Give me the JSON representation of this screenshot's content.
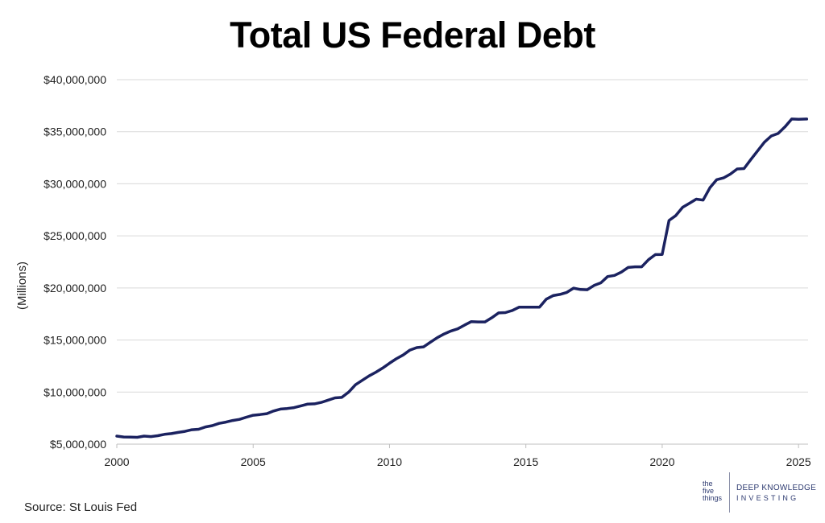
{
  "title": "Total US Federal Debt",
  "source": "Source: St Louis Fed",
  "logo": {
    "five_things": [
      "the",
      "five",
      "things"
    ],
    "line1": "DEEP KNOWLEDGE",
    "line2": "INVESTING",
    "color": "#2d3a70"
  },
  "chart_data": {
    "type": "line",
    "title": "Total US Federal Debt",
    "ylabel": "(Millions)",
    "xlabel": "",
    "xlim": [
      2000,
      2025.35
    ],
    "ylim": [
      5000000,
      40000000
    ],
    "xticks": [
      2000,
      2005,
      2010,
      2015,
      2020,
      2025
    ],
    "yticks": [
      {
        "value": 5000000,
        "label": "$5,000,000"
      },
      {
        "value": 10000000,
        "label": "$10,000,000"
      },
      {
        "value": 15000000,
        "label": "$15,000,000"
      },
      {
        "value": 20000000,
        "label": "$20,000,000"
      },
      {
        "value": 25000000,
        "label": "$25,000,000"
      },
      {
        "value": 30000000,
        "label": "$30,000,000"
      },
      {
        "value": 35000000,
        "label": "$35,000,000"
      },
      {
        "value": 40000000,
        "label": "$40,000,000"
      }
    ],
    "grid": true,
    "line_color": "#1b2260",
    "series": [
      {
        "x": [
          2000,
          2000.25,
          2000.5,
          2000.75,
          2001,
          2001.25,
          2001.5,
          2001.75,
          2002,
          2002.25,
          2002.5,
          2002.75,
          2003,
          2003.25,
          2003.5,
          2003.75,
          2004,
          2004.25,
          2004.5,
          2004.75,
          2005,
          2005.25,
          2005.5,
          2005.75,
          2006,
          2006.25,
          2006.5,
          2006.75,
          2007,
          2007.25,
          2007.5,
          2007.75,
          2008,
          2008.25,
          2008.5,
          2008.75,
          2009,
          2009.25,
          2009.5,
          2009.75,
          2010,
          2010.25,
          2010.5,
          2010.75,
          2011,
          2011.25,
          2011.5,
          2011.75,
          2012,
          2012.25,
          2012.5,
          2012.75,
          2013,
          2013.25,
          2013.5,
          2013.75,
          2014,
          2014.25,
          2014.5,
          2014.75,
          2015,
          2015.25,
          2015.5,
          2015.75,
          2016,
          2016.25,
          2016.5,
          2016.75,
          2017,
          2017.25,
          2017.5,
          2017.75,
          2018,
          2018.25,
          2018.5,
          2018.75,
          2019,
          2019.25,
          2019.5,
          2019.75,
          2020,
          2020.25,
          2020.5,
          2020.75,
          2021,
          2021.25,
          2021.5,
          2021.75,
          2022,
          2022.25,
          2022.5,
          2022.75,
          2023,
          2023.25,
          2023.5,
          2023.75,
          2024,
          2024.25,
          2024.5,
          2024.75,
          2025,
          2025.3
        ],
        "values": [
          5770000,
          5690000,
          5670000,
          5660000,
          5770000,
          5730000,
          5810000,
          5940000,
          6010000,
          6130000,
          6230000,
          6380000,
          6430000,
          6650000,
          6780000,
          6990000,
          7120000,
          7270000,
          7380000,
          7590000,
          7770000,
          7840000,
          7930000,
          8180000,
          8370000,
          8420000,
          8510000,
          8680000,
          8850000,
          8870000,
          9010000,
          9230000,
          9440000,
          9490000,
          9990000,
          10700000,
          11130000,
          11550000,
          11910000,
          12310000,
          12770000,
          13200000,
          13560000,
          14030000,
          14270000,
          14340000,
          14790000,
          15220000,
          15580000,
          15860000,
          16070000,
          16430000,
          16770000,
          16740000,
          16740000,
          17140000,
          17600000,
          17630000,
          17830000,
          18150000,
          18150000,
          18150000,
          18150000,
          18920000,
          19260000,
          19380000,
          19570000,
          19980000,
          19850000,
          19830000,
          20240000,
          20490000,
          21090000,
          21200000,
          21520000,
          21970000,
          22030000,
          22030000,
          22720000,
          23200000,
          23220000,
          26480000,
          26950000,
          27750000,
          28130000,
          28530000,
          28430000,
          29620000,
          30400000,
          30570000,
          30930000,
          31420000,
          31460000,
          32330000,
          33170000,
          34000000,
          34590000,
          34830000,
          35460000,
          36220000,
          36200000,
          36220000
        ]
      }
    ]
  }
}
